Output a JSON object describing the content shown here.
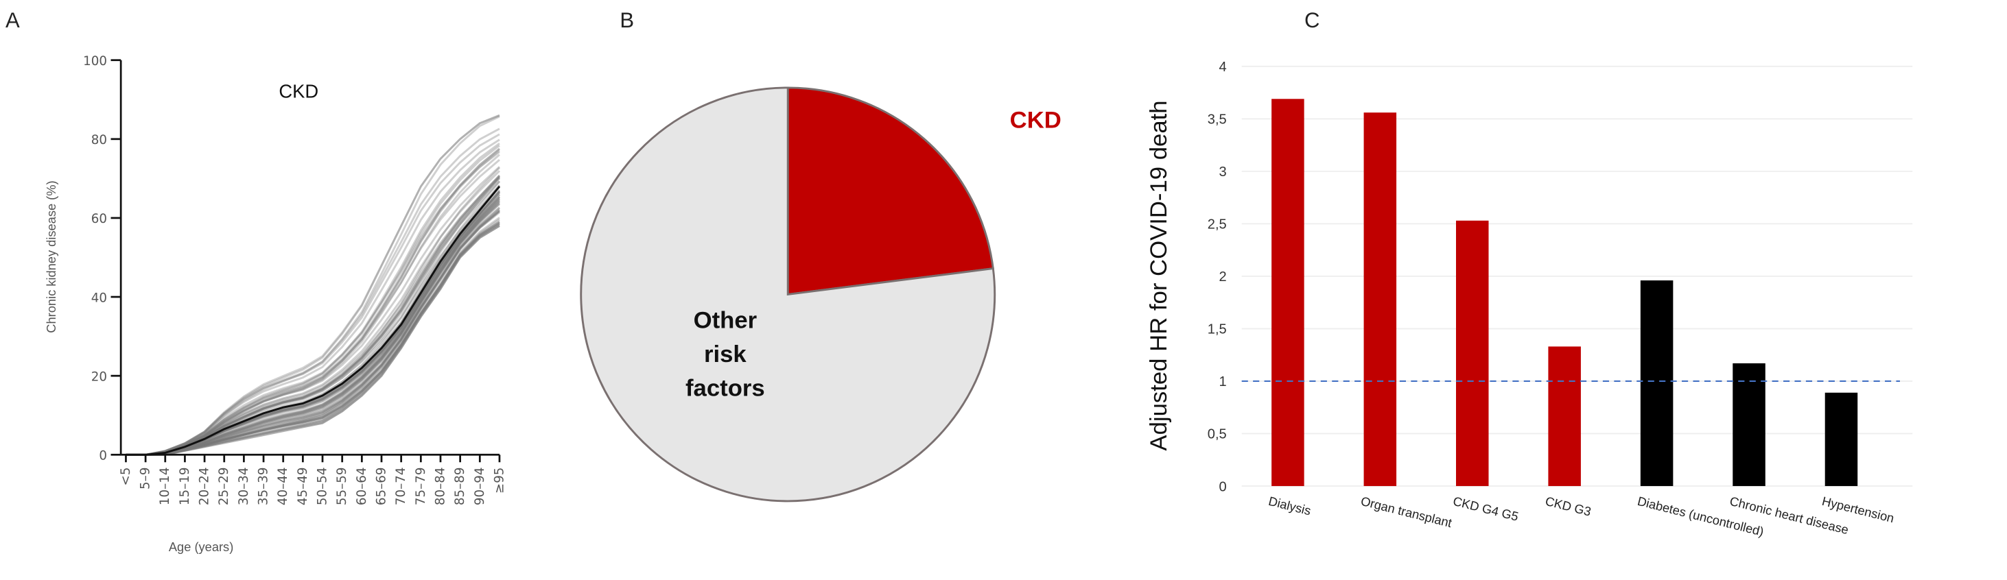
{
  "chart_data": [
    {
      "panel": "A",
      "type": "line",
      "title": "CKD",
      "xlabel": "Age (years)",
      "ylabel": "Chronic kidney disease (%)",
      "ylim": [
        0,
        100
      ],
      "yticks": [
        0,
        20,
        40,
        60,
        80,
        100
      ],
      "categories": [
        "<5",
        "5–9",
        "10–14",
        "15–19",
        "20–24",
        "25–29",
        "30–34",
        "35–39",
        "40–44",
        "45–49",
        "50–54",
        "55–59",
        "60–64",
        "65–69",
        "70–74",
        "75–79",
        "80–84",
        "85–89",
        "90–94",
        "≥95"
      ],
      "series": [
        {
          "role": "mean",
          "color": "#111111",
          "values": [
            0,
            0,
            0.5,
            2,
            4,
            6.5,
            8.5,
            10.5,
            12,
            13,
            15,
            18,
            22,
            27,
            33,
            41,
            49,
            56,
            62,
            68
          ]
        },
        {
          "role": "upper-range",
          "color": "#888888",
          "values": [
            0,
            0,
            1,
            3,
            6,
            11,
            15,
            18,
            20,
            22,
            25,
            31,
            38,
            48,
            58,
            68,
            75,
            80,
            84,
            86
          ]
        },
        {
          "role": "lower-range",
          "color": "#888888",
          "values": [
            0,
            0,
            0,
            1,
            2,
            3,
            4,
            5,
            6,
            7,
            8,
            11,
            15,
            20,
            27,
            35,
            42,
            50,
            55,
            58
          ]
        }
      ],
      "grid": false
    },
    {
      "panel": "B",
      "type": "pie",
      "slices": [
        {
          "label": "CKD",
          "value": 23,
          "color": "#c00000"
        },
        {
          "label": "Other risk factors",
          "label_lines": [
            "Other",
            "risk",
            "factors"
          ],
          "value": 77,
          "color": "#e6e6e6"
        }
      ]
    },
    {
      "panel": "C",
      "type": "bar",
      "ylabel": "Adjusted HR for COVID-19 death",
      "ylim": [
        0,
        4
      ],
      "yticks": [
        "0",
        "0,5",
        "1",
        "1,5",
        "2",
        "2,5",
        "3",
        "3,5",
        "4"
      ],
      "categories": [
        "Dialysis",
        "Organ transplant",
        "CKD G4 G5",
        "CKD G3",
        "Diabetes (uncontrolled)",
        "Chronic heart disease",
        "Hypertension"
      ],
      "values": [
        3.69,
        3.56,
        2.53,
        1.33,
        1.96,
        1.17,
        0.89
      ],
      "colors": [
        "#c00000",
        "#c00000",
        "#c00000",
        "#c00000",
        "#000000",
        "#000000",
        "#000000"
      ],
      "reference_line": {
        "value": 1,
        "style": "dashed",
        "color": "#4472c4"
      },
      "grid": true
    }
  ],
  "panels": {
    "a": "A",
    "b": "B",
    "c": "C"
  }
}
